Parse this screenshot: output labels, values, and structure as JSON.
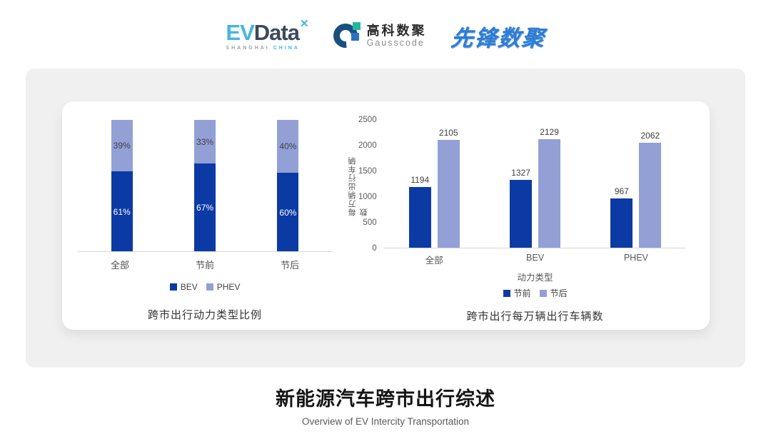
{
  "header": {
    "evdata": {
      "ev": "EV",
      "data": "Data",
      "spark": "✕",
      "sub1": "SHANGHAI",
      "sub2": "CHINA"
    },
    "gausscode": {
      "cn": "高科数聚",
      "en": "Gausscode"
    },
    "pioneer": {
      "text": "先锋数聚"
    }
  },
  "colors": {
    "bev_dark_blue": "#0c3aa5",
    "phev_light_blue": "#92a0d6",
    "panel_gray": "#f0f0f1",
    "axis_text": "#595959",
    "evdata_blue": "#45b6e0",
    "pioneer_blue": "#2f7cd3"
  },
  "chart_data": [
    {
      "type": "bar",
      "variant": "stacked-percent",
      "title": "跨市出行动力类型比例",
      "categories": [
        "全部",
        "节前",
        "节后"
      ],
      "series": [
        {
          "name": "BEV",
          "values": [
            61,
            67,
            60
          ],
          "color": "#0c3aa5",
          "label_suffix": "%"
        },
        {
          "name": "PHEV",
          "values": [
            39,
            33,
            40
          ],
          "color": "#92a0d6",
          "label_suffix": "%"
        }
      ],
      "ylim": [
        0,
        100
      ],
      "grid": false,
      "legend_position": "bottom"
    },
    {
      "type": "bar",
      "variant": "grouped",
      "title": "跨市出行每万辆出行车辆数",
      "categories": [
        "全部",
        "BEV",
        "PHEV"
      ],
      "xlabel": "动力类型",
      "ylabel": "每万辆出行车辆数",
      "series": [
        {
          "name": "节前",
          "values": [
            1194,
            1327,
            967
          ],
          "color": "#0c3aa5"
        },
        {
          "name": "节后",
          "values": [
            2105,
            2129,
            2062
          ],
          "color": "#92a0d6"
        }
      ],
      "ylim": [
        0,
        2500
      ],
      "yticks": [
        0,
        500,
        1000,
        1500,
        2000,
        2500
      ],
      "grid": false,
      "legend_position": "bottom"
    }
  ],
  "footer": {
    "title": "新能源汽车跨市出行综述",
    "subtitle": "Overview of EV Intercity Transportation"
  }
}
